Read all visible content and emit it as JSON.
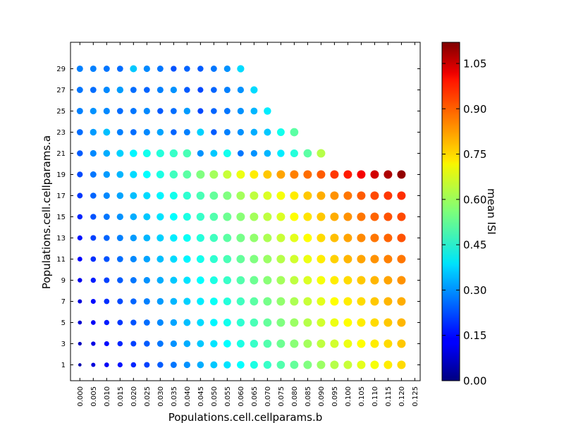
{
  "chart_data": {
    "type": "scatter",
    "title": "",
    "xlabel": "Populations.cell.cellparams.b",
    "ylabel": "Populations.cell.cellparams.a",
    "colorbar_label": "mean ISI",
    "colormap": "jet",
    "color_range": [
      0.0,
      1.12
    ],
    "size_encodes": "mean ISI",
    "x_ticks": [
      "0.000",
      "0.005",
      "0.010",
      "0.015",
      "0.020",
      "0.025",
      "0.030",
      "0.035",
      "0.040",
      "0.045",
      "0.050",
      "0.055",
      "0.060",
      "0.065",
      "0.070",
      "0.075",
      "0.080",
      "0.085",
      "0.090",
      "0.095",
      "0.100",
      "0.105",
      "0.110",
      "0.115",
      "0.120",
      "0.125"
    ],
    "y_ticks": [
      "1",
      "3",
      "5",
      "7",
      "9",
      "11",
      "13",
      "15",
      "17",
      "19",
      "21",
      "23",
      "25",
      "27",
      "29"
    ],
    "colorbar_ticks": [
      "0.00",
      "0.15",
      "0.30",
      "0.45",
      "0.60",
      "0.75",
      "0.90",
      "1.05"
    ],
    "xlim": [
      -0.0035,
      0.127
    ],
    "ylim": [
      -0.5,
      31.5
    ],
    "grid": false,
    "x": [
      0,
      0.005,
      0.01,
      0.015,
      0.02,
      0.025,
      0.03,
      0.035,
      0.04,
      0.045,
      0.05,
      0.055,
      0.06,
      0.065,
      0.07,
      0.075,
      0.08,
      0.085,
      0.09,
      0.095,
      0.1,
      0.105,
      0.11,
      0.115,
      0.12
    ],
    "series": [
      {
        "a": 1,
        "values": [
          0.05,
          0.1,
          0.13,
          0.16,
          0.18,
          0.21,
          0.24,
          0.27,
          0.3,
          0.33,
          0.36,
          0.39,
          0.42,
          0.45,
          0.48,
          0.51,
          0.53,
          0.56,
          0.59,
          0.62,
          0.64,
          0.67,
          0.69,
          0.72,
          0.74
        ]
      },
      {
        "a": 3,
        "values": [
          0.07,
          0.11,
          0.15,
          0.18,
          0.21,
          0.24,
          0.27,
          0.3,
          0.33,
          0.36,
          0.39,
          0.42,
          0.45,
          0.48,
          0.51,
          0.54,
          0.57,
          0.6,
          0.63,
          0.65,
          0.68,
          0.7,
          0.72,
          0.74,
          0.76
        ]
      },
      {
        "a": 5,
        "values": [
          0.09,
          0.13,
          0.17,
          0.2,
          0.23,
          0.26,
          0.29,
          0.32,
          0.35,
          0.38,
          0.41,
          0.44,
          0.47,
          0.5,
          0.53,
          0.56,
          0.59,
          0.62,
          0.65,
          0.68,
          0.7,
          0.72,
          0.74,
          0.76,
          0.78
        ]
      },
      {
        "a": 7,
        "values": [
          0.1,
          0.15,
          0.19,
          0.22,
          0.25,
          0.28,
          0.31,
          0.34,
          0.37,
          0.4,
          0.43,
          0.46,
          0.49,
          0.52,
          0.55,
          0.58,
          0.61,
          0.64,
          0.67,
          0.7,
          0.72,
          0.74,
          0.76,
          0.78,
          0.79
        ]
      },
      {
        "a": 9,
        "values": [
          0.12,
          0.17,
          0.21,
          0.24,
          0.27,
          0.3,
          0.33,
          0.36,
          0.39,
          0.42,
          0.45,
          0.48,
          0.51,
          0.54,
          0.57,
          0.6,
          0.63,
          0.66,
          0.69,
          0.72,
          0.74,
          0.76,
          0.78,
          0.8,
          0.82
        ]
      },
      {
        "a": 11,
        "values": [
          0.14,
          0.19,
          0.23,
          0.26,
          0.29,
          0.32,
          0.35,
          0.38,
          0.41,
          0.44,
          0.47,
          0.5,
          0.53,
          0.56,
          0.59,
          0.62,
          0.65,
          0.68,
          0.72,
          0.75,
          0.78,
          0.8,
          0.82,
          0.84,
          0.85
        ]
      },
      {
        "a": 13,
        "values": [
          0.16,
          0.21,
          0.25,
          0.28,
          0.31,
          0.34,
          0.37,
          0.4,
          0.43,
          0.46,
          0.49,
          0.52,
          0.55,
          0.58,
          0.61,
          0.64,
          0.67,
          0.7,
          0.74,
          0.77,
          0.8,
          0.83,
          0.85,
          0.87,
          0.89
        ]
      },
      {
        "a": 15,
        "values": [
          0.18,
          0.23,
          0.27,
          0.3,
          0.33,
          0.36,
          0.39,
          0.42,
          0.45,
          0.48,
          0.51,
          0.54,
          0.57,
          0.6,
          0.63,
          0.66,
          0.7,
          0.73,
          0.76,
          0.79,
          0.82,
          0.85,
          0.87,
          0.89,
          0.9
        ]
      },
      {
        "a": 17,
        "values": [
          0.2,
          0.25,
          0.29,
          0.32,
          0.35,
          0.38,
          0.41,
          0.44,
          0.47,
          0.5,
          0.53,
          0.56,
          0.6,
          0.63,
          0.66,
          0.69,
          0.72,
          0.76,
          0.79,
          0.82,
          0.85,
          0.88,
          0.9,
          0.92,
          0.93
        ]
      },
      {
        "a": 19,
        "values": [
          0.22,
          0.27,
          0.31,
          0.34,
          0.38,
          0.42,
          0.45,
          0.49,
          0.52,
          0.56,
          0.6,
          0.64,
          0.68,
          0.72,
          0.76,
          0.8,
          0.84,
          0.86,
          0.88,
          0.92,
          0.95,
          0.99,
          1.03,
          1.07,
          1.1
        ]
      },
      {
        "a": 21,
        "values": [
          0.24,
          0.29,
          0.33,
          0.37,
          0.41,
          0.44,
          0.46,
          0.48,
          0.5,
          0.3,
          0.36,
          0.44,
          0.27,
          0.3,
          0.34,
          0.4,
          0.46,
          0.52,
          0.62
        ]
      },
      {
        "a": 23,
        "values": [
          0.26,
          0.31,
          0.35,
          0.28,
          0.26,
          0.29,
          0.32,
          0.25,
          0.28,
          0.37,
          0.24,
          0.28,
          0.3,
          0.33,
          0.36,
          0.44,
          0.52
        ]
      },
      {
        "a": 25,
        "values": [
          0.28,
          0.3,
          0.29,
          0.26,
          0.27,
          0.29,
          0.24,
          0.26,
          0.31,
          0.22,
          0.25,
          0.27,
          0.3,
          0.34,
          0.4
        ]
      },
      {
        "a": 27,
        "values": [
          0.27,
          0.26,
          0.29,
          0.31,
          0.26,
          0.25,
          0.28,
          0.3,
          0.24,
          0.22,
          0.25,
          0.28,
          0.3,
          0.38
        ]
      },
      {
        "a": 29,
        "values": [
          0.28,
          0.28,
          0.27,
          0.26,
          0.36,
          0.29,
          0.27,
          0.23,
          0.25,
          0.24,
          0.27,
          0.3,
          0.38
        ]
      }
    ]
  }
}
